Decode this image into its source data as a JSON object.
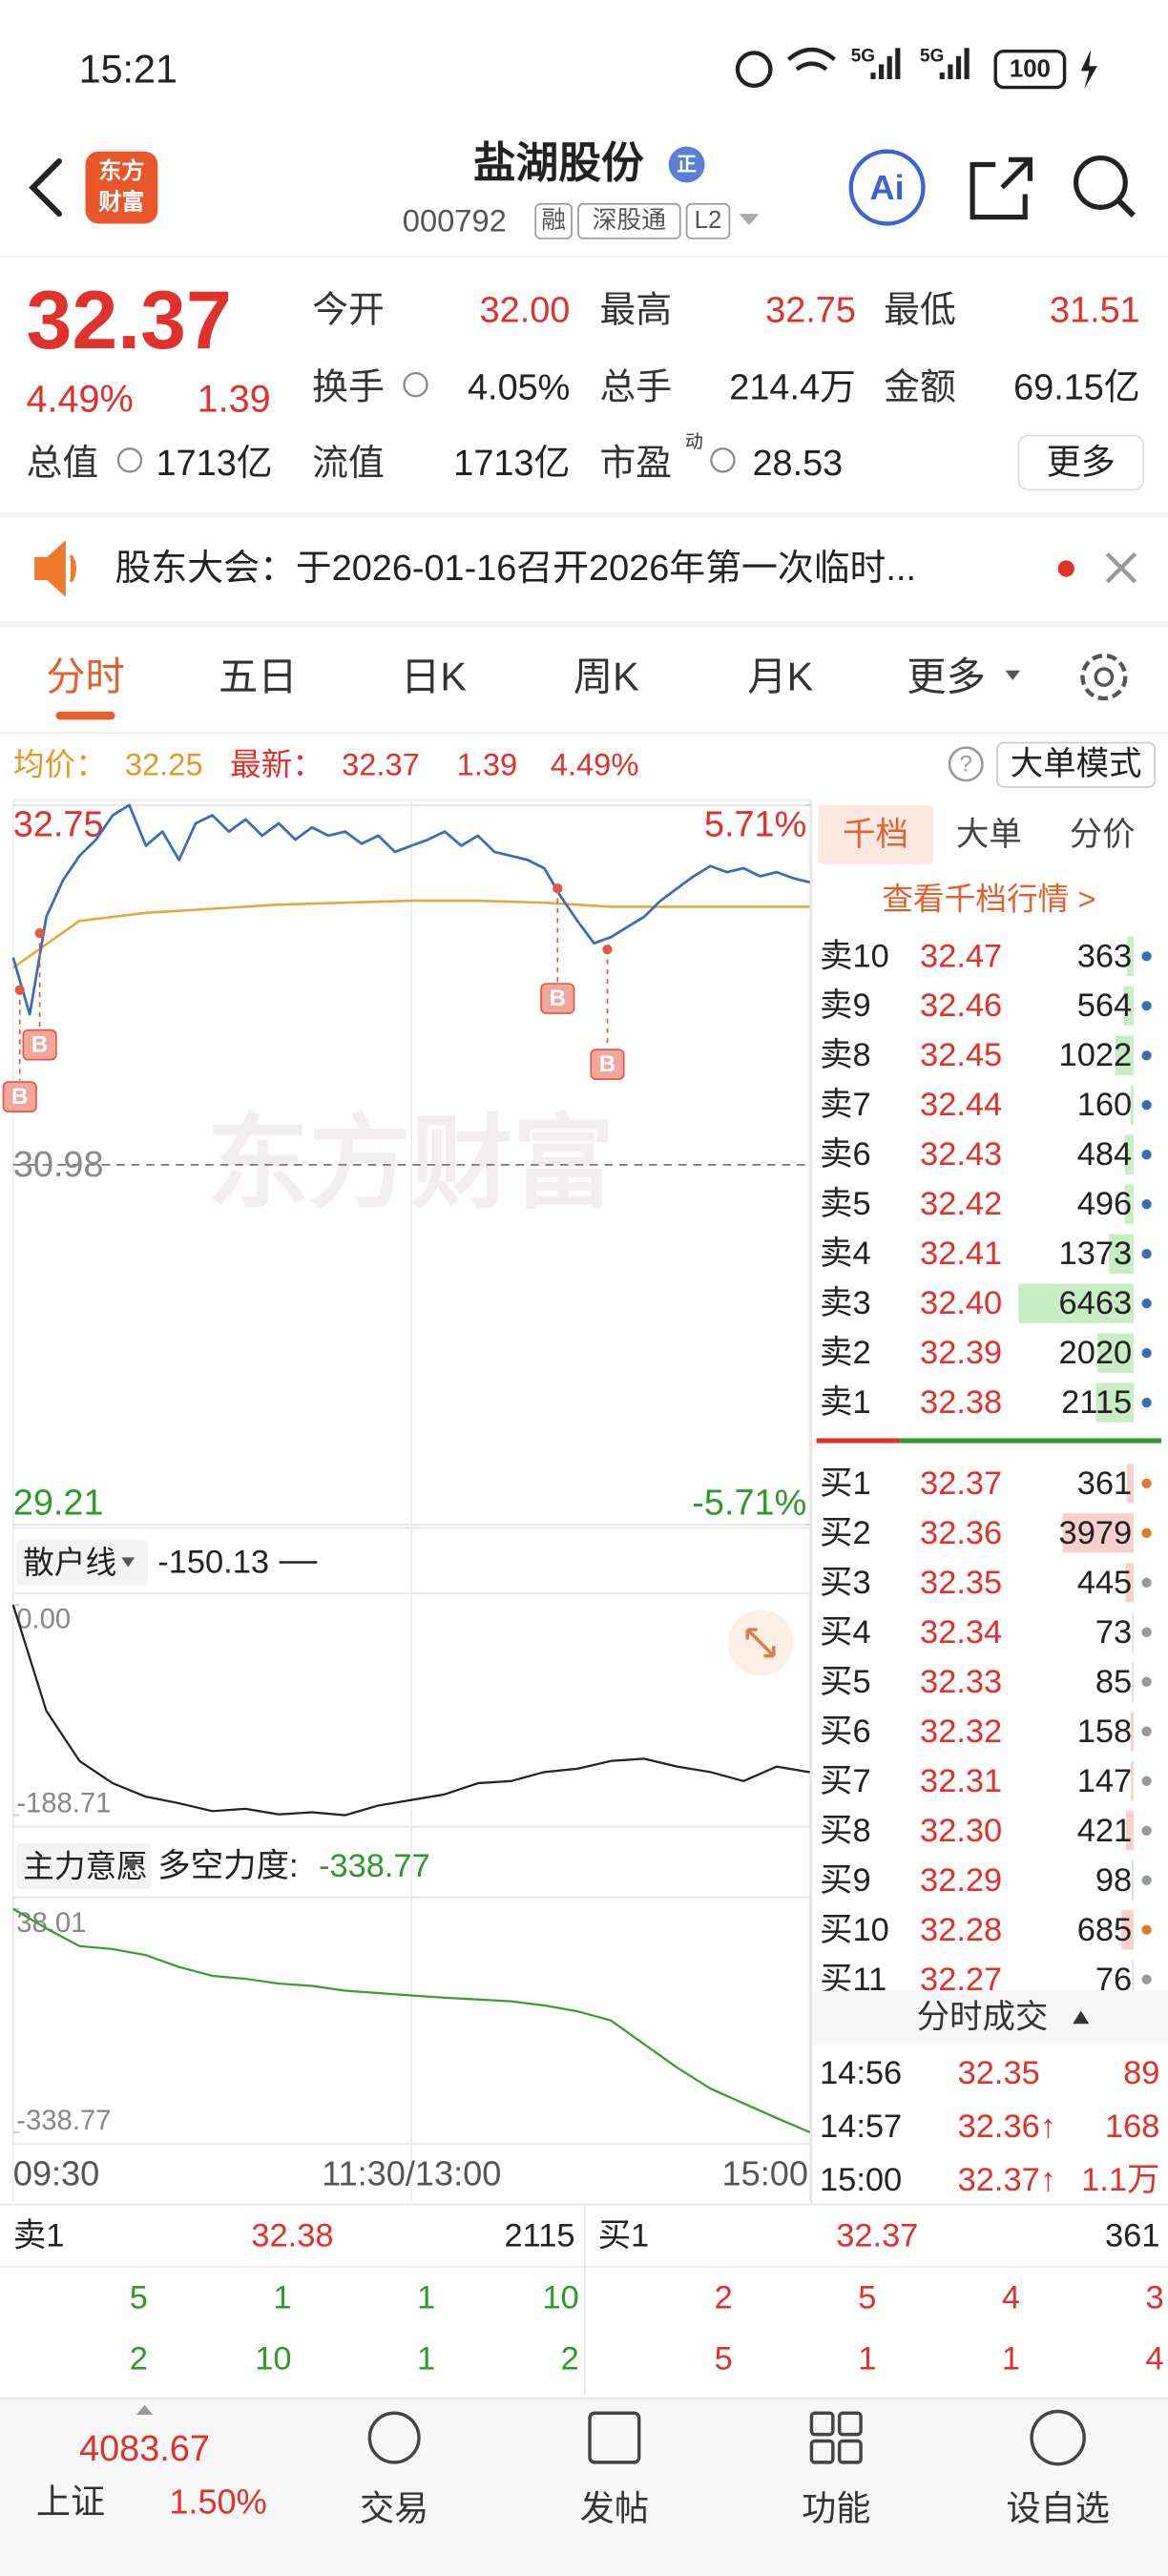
{
  "status_bar": {
    "time": "15:21",
    "network": [
      "5G",
      "5G"
    ],
    "battery": "100"
  },
  "header": {
    "logo": [
      "东方",
      "财富"
    ],
    "title": "盐湖股份",
    "badge": "正",
    "code": "000792",
    "tags": [
      "融",
      "深股通",
      "L2"
    ],
    "ai": "Ai"
  },
  "quote": {
    "price": "32.37",
    "change_pct": "4.49%",
    "change": "1.39",
    "fields": [
      {
        "label": "今开",
        "value": "32.00"
      },
      {
        "label": "最高",
        "value": "32.75"
      },
      {
        "label": "最低",
        "value": "31.51"
      },
      {
        "label": "换手",
        "value": "4.05%"
      },
      {
        "label": "总手",
        "value": "214.4万"
      },
      {
        "label": "金额",
        "value": "69.15亿"
      },
      {
        "label": "总值",
        "value": "1713亿"
      },
      {
        "label": "流值",
        "value": "1713亿"
      },
      {
        "label": "市盈",
        "sup": "动",
        "value": "28.53"
      }
    ],
    "more": "更多"
  },
  "notice": "股东大会：于2026-01-16召开2026年第一次临时...",
  "tabs": {
    "items": [
      "分时",
      "五日",
      "日K",
      "周K",
      "月K",
      "更多"
    ],
    "active": 0
  },
  "summary": {
    "avg_label": "均价：",
    "avg": "32.25",
    "latest_label": "最新：",
    "latest": "32.37",
    "change": "1.39",
    "change_pct": "4.49%",
    "help": "?",
    "big_order": "大单模式"
  },
  "intraday_chart": {
    "watermark": "东方财富",
    "ylim": [
      29.21,
      32.75
    ],
    "yticks": [
      32.75,
      30.98,
      29.21
    ],
    "y2lim": [
      -5.71,
      5.71
    ],
    "y2ticks": [
      {
        "value": 5.71,
        "label": "5.71%"
      },
      {
        "value": -5.71,
        "label": "-5.71%"
      }
    ],
    "xlim": [
      0,
      240
    ],
    "xticks": [
      {
        "value": 0,
        "label": "09:30"
      },
      {
        "value": 120,
        "label": "11:30/13:00"
      },
      {
        "value": 240,
        "label": "15:00"
      }
    ],
    "price": {
      "color": "#3a6db5",
      "x": [
        0,
        5,
        10,
        15,
        20,
        25,
        30,
        35,
        40,
        45,
        50,
        55,
        60,
        65,
        70,
        75,
        80,
        85,
        90,
        95,
        100,
        105,
        110,
        115,
        120,
        125,
        130,
        135,
        140,
        145,
        150,
        155,
        160,
        165,
        170,
        175,
        180,
        185,
        190,
        195,
        200,
        205,
        210,
        215,
        220,
        225,
        230,
        235,
        240
      ],
      "values": [
        32.0,
        31.72,
        32.2,
        32.38,
        32.5,
        32.58,
        32.7,
        32.75,
        32.55,
        32.62,
        32.48,
        32.66,
        32.7,
        32.62,
        32.68,
        32.6,
        32.66,
        32.58,
        32.64,
        32.6,
        32.62,
        32.56,
        32.6,
        32.52,
        32.55,
        32.58,
        32.62,
        32.55,
        32.6,
        32.52,
        32.5,
        32.48,
        32.44,
        32.3,
        32.18,
        32.07,
        32.1,
        32.15,
        32.2,
        32.28,
        32.34,
        32.4,
        32.45,
        32.42,
        32.44,
        32.4,
        32.42,
        32.39,
        32.37
      ]
    },
    "average": {
      "color": "#e4a93c",
      "x": [
        0,
        20,
        40,
        60,
        80,
        100,
        120,
        140,
        160,
        180,
        200,
        220,
        240
      ],
      "values": [
        31.95,
        32.18,
        32.22,
        32.24,
        32.26,
        32.27,
        32.28,
        32.28,
        32.27,
        32.25,
        32.25,
        32.25,
        32.25
      ]
    },
    "markers": [
      {
        "x": 2,
        "value": 31.84,
        "label": "B"
      },
      {
        "x": 8,
        "value": 32.12,
        "label": "B"
      },
      {
        "x": 164,
        "value": 32.34,
        "label": "B"
      },
      {
        "x": 179,
        "value": 32.04,
        "label": "B"
      }
    ]
  },
  "retail_line": {
    "label": "散户线",
    "value": "-150.13",
    "ylim": [
      -188.71,
      0
    ],
    "yticks": [
      {
        "value": 0,
        "label": "0.00"
      },
      -188.71
    ],
    "color": "#222222",
    "x": [
      0,
      10,
      20,
      30,
      40,
      50,
      60,
      70,
      80,
      90,
      100,
      110,
      120,
      130,
      140,
      150,
      160,
      170,
      180,
      190,
      200,
      210,
      220,
      230,
      240
    ],
    "values": [
      0,
      -95,
      -140,
      -160,
      -172,
      -178,
      -185,
      -183,
      -188,
      -186,
      -188.71,
      -180,
      -175,
      -170,
      -160,
      -158,
      -150,
      -147,
      -140,
      -138,
      -145,
      -150,
      -158,
      -145,
      -150.13
    ]
  },
  "main_force": {
    "label": "主力意愿",
    "metric_label": "多空力度:",
    "value": "-338.77",
    "ylim": [
      -338.77,
      38.01
    ],
    "yticks": [
      38.01,
      -338.77
    ],
    "color": "#3d9a2e",
    "x": [
      0,
      10,
      20,
      30,
      40,
      50,
      60,
      70,
      80,
      90,
      100,
      110,
      120,
      130,
      140,
      150,
      160,
      170,
      180,
      190,
      200,
      210,
      220,
      230,
      240
    ],
    "values": [
      38.01,
      5,
      -25,
      -30,
      -40,
      -60,
      -75,
      -80,
      -88,
      -92,
      -100,
      -104,
      -108,
      -112,
      -115,
      -118,
      -125,
      -135,
      -150,
      -190,
      -230,
      -265,
      -290,
      -315,
      -338.77
    ]
  },
  "order_book": {
    "tabs": [
      "千档",
      "大单",
      "分价"
    ],
    "active": 0,
    "link": "查看千档行情 >",
    "bar_colors": {
      "ask": "#c8ecc3",
      "bid": "#f8cfcf"
    },
    "asks": [
      {
        "label": "卖10",
        "price": "32.47",
        "volume": 363,
        "dot": "#3a6db5"
      },
      {
        "label": "卖9",
        "price": "32.46",
        "volume": 564,
        "dot": "#3a6db5"
      },
      {
        "label": "卖8",
        "price": "32.45",
        "volume": 1022,
        "dot": "#3a6db5"
      },
      {
        "label": "卖7",
        "price": "32.44",
        "volume": 160,
        "dot": "#3a6db5"
      },
      {
        "label": "卖6",
        "price": "32.43",
        "volume": 484,
        "dot": "#3a6db5"
      },
      {
        "label": "卖5",
        "price": "32.42",
        "volume": 496,
        "dot": "#3a6db5"
      },
      {
        "label": "卖4",
        "price": "32.41",
        "volume": 1373,
        "dot": "#3a6db5"
      },
      {
        "label": "卖3",
        "price": "32.40",
        "volume": 6463,
        "dot": "#3a6db5"
      },
      {
        "label": "卖2",
        "price": "32.39",
        "volume": 2020,
        "dot": "#3a6db5"
      },
      {
        "label": "卖1",
        "price": "32.38",
        "volume": 2115,
        "dot": "#3a6db5"
      }
    ],
    "bids": [
      {
        "label": "买1",
        "price": "32.37",
        "volume": 361,
        "dot": "#e07a2a"
      },
      {
        "label": "买2",
        "price": "32.36",
        "volume": 3979,
        "dot": "#e07a2a"
      },
      {
        "label": "买3",
        "price": "32.35",
        "volume": 445,
        "dot": "#999999"
      },
      {
        "label": "买4",
        "price": "32.34",
        "volume": 73,
        "dot": "#999999"
      },
      {
        "label": "买5",
        "price": "32.33",
        "volume": 85,
        "dot": "#999999"
      },
      {
        "label": "买6",
        "price": "32.32",
        "volume": 158,
        "dot": "#999999"
      },
      {
        "label": "买7",
        "price": "32.31",
        "volume": 147,
        "dot": "#999999"
      },
      {
        "label": "买8",
        "price": "32.30",
        "volume": 421,
        "dot": "#999999"
      },
      {
        "label": "买9",
        "price": "32.29",
        "volume": 98,
        "dot": "#999999"
      },
      {
        "label": "买10",
        "price": "32.28",
        "volume": 685,
        "dot": "#e07a2a"
      },
      {
        "label": "买11",
        "price": "32.27",
        "volume": 76,
        "dot": "#999999"
      }
    ]
  },
  "trades": {
    "title": "分时成交",
    "rows": [
      [
        "14:56",
        "32.35",
        "89"
      ],
      [
        "14:57",
        "32.36↑",
        "168"
      ],
      [
        "15:00",
        "32.37↑",
        "1.1万"
      ]
    ]
  },
  "depth_summary": {
    "ask": {
      "label": "卖1",
      "price": "32.38",
      "volume": "2115",
      "counts": [
        [
          5,
          1,
          1,
          10
        ],
        [
          2,
          10,
          1,
          2
        ]
      ]
    },
    "bid": {
      "label": "买1",
      "price": "32.37",
      "volume": "361",
      "counts": [
        [
          2,
          5,
          4,
          3
        ],
        [
          5,
          1,
          1,
          4
        ]
      ]
    }
  },
  "nav": {
    "index_value": "4083.67",
    "index_name": "上证",
    "index_change": "1.50%",
    "items": [
      "交易",
      "发帖",
      "功能",
      "设自选"
    ]
  }
}
